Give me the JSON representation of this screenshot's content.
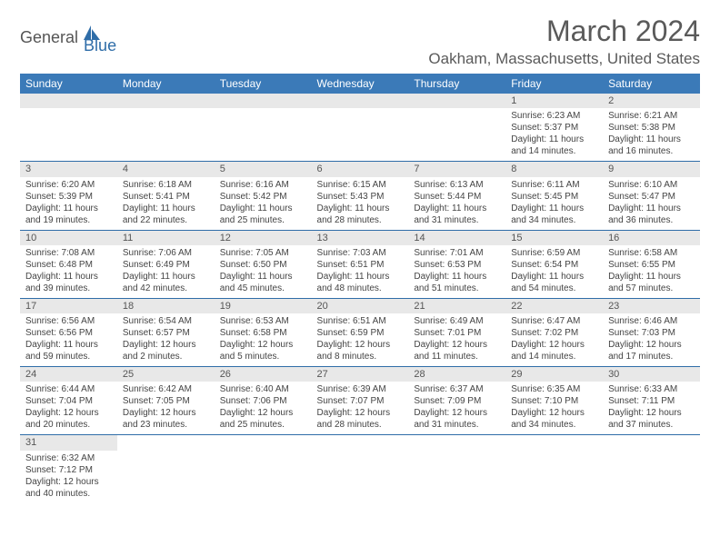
{
  "logo": {
    "part1": "General",
    "part2": "Blue"
  },
  "title": "March 2024",
  "location": "Oakham, Massachusetts, United States",
  "colors": {
    "header_bg": "#3b7ab8",
    "header_text": "#ffffff",
    "day_num_bg": "#e8e8e8",
    "border": "#2f6da8",
    "logo_accent": "#2f6da8"
  },
  "days_of_week": [
    "Sunday",
    "Monday",
    "Tuesday",
    "Wednesday",
    "Thursday",
    "Friday",
    "Saturday"
  ],
  "weeks": [
    [
      null,
      null,
      null,
      null,
      null,
      {
        "n": "1",
        "sr": "Sunrise: 6:23 AM",
        "ss": "Sunset: 5:37 PM",
        "dl": "Daylight: 11 hours and 14 minutes."
      },
      {
        "n": "2",
        "sr": "Sunrise: 6:21 AM",
        "ss": "Sunset: 5:38 PM",
        "dl": "Daylight: 11 hours and 16 minutes."
      }
    ],
    [
      {
        "n": "3",
        "sr": "Sunrise: 6:20 AM",
        "ss": "Sunset: 5:39 PM",
        "dl": "Daylight: 11 hours and 19 minutes."
      },
      {
        "n": "4",
        "sr": "Sunrise: 6:18 AM",
        "ss": "Sunset: 5:41 PM",
        "dl": "Daylight: 11 hours and 22 minutes."
      },
      {
        "n": "5",
        "sr": "Sunrise: 6:16 AM",
        "ss": "Sunset: 5:42 PM",
        "dl": "Daylight: 11 hours and 25 minutes."
      },
      {
        "n": "6",
        "sr": "Sunrise: 6:15 AM",
        "ss": "Sunset: 5:43 PM",
        "dl": "Daylight: 11 hours and 28 minutes."
      },
      {
        "n": "7",
        "sr": "Sunrise: 6:13 AM",
        "ss": "Sunset: 5:44 PM",
        "dl": "Daylight: 11 hours and 31 minutes."
      },
      {
        "n": "8",
        "sr": "Sunrise: 6:11 AM",
        "ss": "Sunset: 5:45 PM",
        "dl": "Daylight: 11 hours and 34 minutes."
      },
      {
        "n": "9",
        "sr": "Sunrise: 6:10 AM",
        "ss": "Sunset: 5:47 PM",
        "dl": "Daylight: 11 hours and 36 minutes."
      }
    ],
    [
      {
        "n": "10",
        "sr": "Sunrise: 7:08 AM",
        "ss": "Sunset: 6:48 PM",
        "dl": "Daylight: 11 hours and 39 minutes."
      },
      {
        "n": "11",
        "sr": "Sunrise: 7:06 AM",
        "ss": "Sunset: 6:49 PM",
        "dl": "Daylight: 11 hours and 42 minutes."
      },
      {
        "n": "12",
        "sr": "Sunrise: 7:05 AM",
        "ss": "Sunset: 6:50 PM",
        "dl": "Daylight: 11 hours and 45 minutes."
      },
      {
        "n": "13",
        "sr": "Sunrise: 7:03 AM",
        "ss": "Sunset: 6:51 PM",
        "dl": "Daylight: 11 hours and 48 minutes."
      },
      {
        "n": "14",
        "sr": "Sunrise: 7:01 AM",
        "ss": "Sunset: 6:53 PM",
        "dl": "Daylight: 11 hours and 51 minutes."
      },
      {
        "n": "15",
        "sr": "Sunrise: 6:59 AM",
        "ss": "Sunset: 6:54 PM",
        "dl": "Daylight: 11 hours and 54 minutes."
      },
      {
        "n": "16",
        "sr": "Sunrise: 6:58 AM",
        "ss": "Sunset: 6:55 PM",
        "dl": "Daylight: 11 hours and 57 minutes."
      }
    ],
    [
      {
        "n": "17",
        "sr": "Sunrise: 6:56 AM",
        "ss": "Sunset: 6:56 PM",
        "dl": "Daylight: 11 hours and 59 minutes."
      },
      {
        "n": "18",
        "sr": "Sunrise: 6:54 AM",
        "ss": "Sunset: 6:57 PM",
        "dl": "Daylight: 12 hours and 2 minutes."
      },
      {
        "n": "19",
        "sr": "Sunrise: 6:53 AM",
        "ss": "Sunset: 6:58 PM",
        "dl": "Daylight: 12 hours and 5 minutes."
      },
      {
        "n": "20",
        "sr": "Sunrise: 6:51 AM",
        "ss": "Sunset: 6:59 PM",
        "dl": "Daylight: 12 hours and 8 minutes."
      },
      {
        "n": "21",
        "sr": "Sunrise: 6:49 AM",
        "ss": "Sunset: 7:01 PM",
        "dl": "Daylight: 12 hours and 11 minutes."
      },
      {
        "n": "22",
        "sr": "Sunrise: 6:47 AM",
        "ss": "Sunset: 7:02 PM",
        "dl": "Daylight: 12 hours and 14 minutes."
      },
      {
        "n": "23",
        "sr": "Sunrise: 6:46 AM",
        "ss": "Sunset: 7:03 PM",
        "dl": "Daylight: 12 hours and 17 minutes."
      }
    ],
    [
      {
        "n": "24",
        "sr": "Sunrise: 6:44 AM",
        "ss": "Sunset: 7:04 PM",
        "dl": "Daylight: 12 hours and 20 minutes."
      },
      {
        "n": "25",
        "sr": "Sunrise: 6:42 AM",
        "ss": "Sunset: 7:05 PM",
        "dl": "Daylight: 12 hours and 23 minutes."
      },
      {
        "n": "26",
        "sr": "Sunrise: 6:40 AM",
        "ss": "Sunset: 7:06 PM",
        "dl": "Daylight: 12 hours and 25 minutes."
      },
      {
        "n": "27",
        "sr": "Sunrise: 6:39 AM",
        "ss": "Sunset: 7:07 PM",
        "dl": "Daylight: 12 hours and 28 minutes."
      },
      {
        "n": "28",
        "sr": "Sunrise: 6:37 AM",
        "ss": "Sunset: 7:09 PM",
        "dl": "Daylight: 12 hours and 31 minutes."
      },
      {
        "n": "29",
        "sr": "Sunrise: 6:35 AM",
        "ss": "Sunset: 7:10 PM",
        "dl": "Daylight: 12 hours and 34 minutes."
      },
      {
        "n": "30",
        "sr": "Sunrise: 6:33 AM",
        "ss": "Sunset: 7:11 PM",
        "dl": "Daylight: 12 hours and 37 minutes."
      }
    ],
    [
      {
        "n": "31",
        "sr": "Sunrise: 6:32 AM",
        "ss": "Sunset: 7:12 PM",
        "dl": "Daylight: 12 hours and 40 minutes."
      },
      null,
      null,
      null,
      null,
      null,
      null
    ]
  ]
}
